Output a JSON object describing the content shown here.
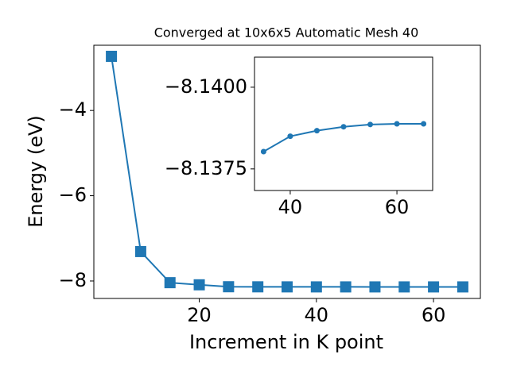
{
  "chart_data": [
    {
      "type": "line",
      "title": "Converged at 10x6x5 Automatic Mesh 40",
      "x_label": "Increment in K point",
      "y_label": "Energy (eV)",
      "x": [
        5,
        10,
        15,
        20,
        25,
        30,
        35,
        40,
        45,
        50,
        55,
        60,
        65
      ],
      "series": [
        {
          "color": "#1f77b4",
          "marker": "square",
          "values": [
            -2.73,
            -7.31,
            -8.04,
            -8.09,
            -8.135,
            -8.137,
            -8.13803,
            -8.1385,
            -8.13867,
            -8.13879,
            -8.13886,
            -8.13888,
            -8.13888
          ]
        }
      ],
      "xlim": [
        2,
        68
      ],
      "ylim": [
        -8.41,
        -2.47
      ],
      "xticks": [
        20,
        40,
        60
      ],
      "yticks": [
        {
          "value": -8,
          "label": "−8"
        },
        {
          "value": -6,
          "label": "−6"
        },
        {
          "value": -4,
          "label": "−4"
        }
      ]
    },
    {
      "type": "line",
      "x": [
        35,
        40,
        45,
        50,
        55,
        60,
        65
      ],
      "series": [
        {
          "color": "#1f77b4",
          "marker": "circle",
          "values": [
            -8.13803,
            -8.1385,
            -8.13867,
            -8.13879,
            -8.13886,
            -8.13888,
            -8.13888
          ]
        }
      ],
      "xlim": [
        33.3,
        66.7
      ],
      "ylim": [
        -8.13684,
        -8.14092
      ],
      "xticks": [
        40,
        60
      ],
      "yticks": [
        {
          "value": -8.1375,
          "label": "−8.1375"
        },
        {
          "value": -8.14,
          "label": "−8.1400"
        }
      ]
    }
  ]
}
